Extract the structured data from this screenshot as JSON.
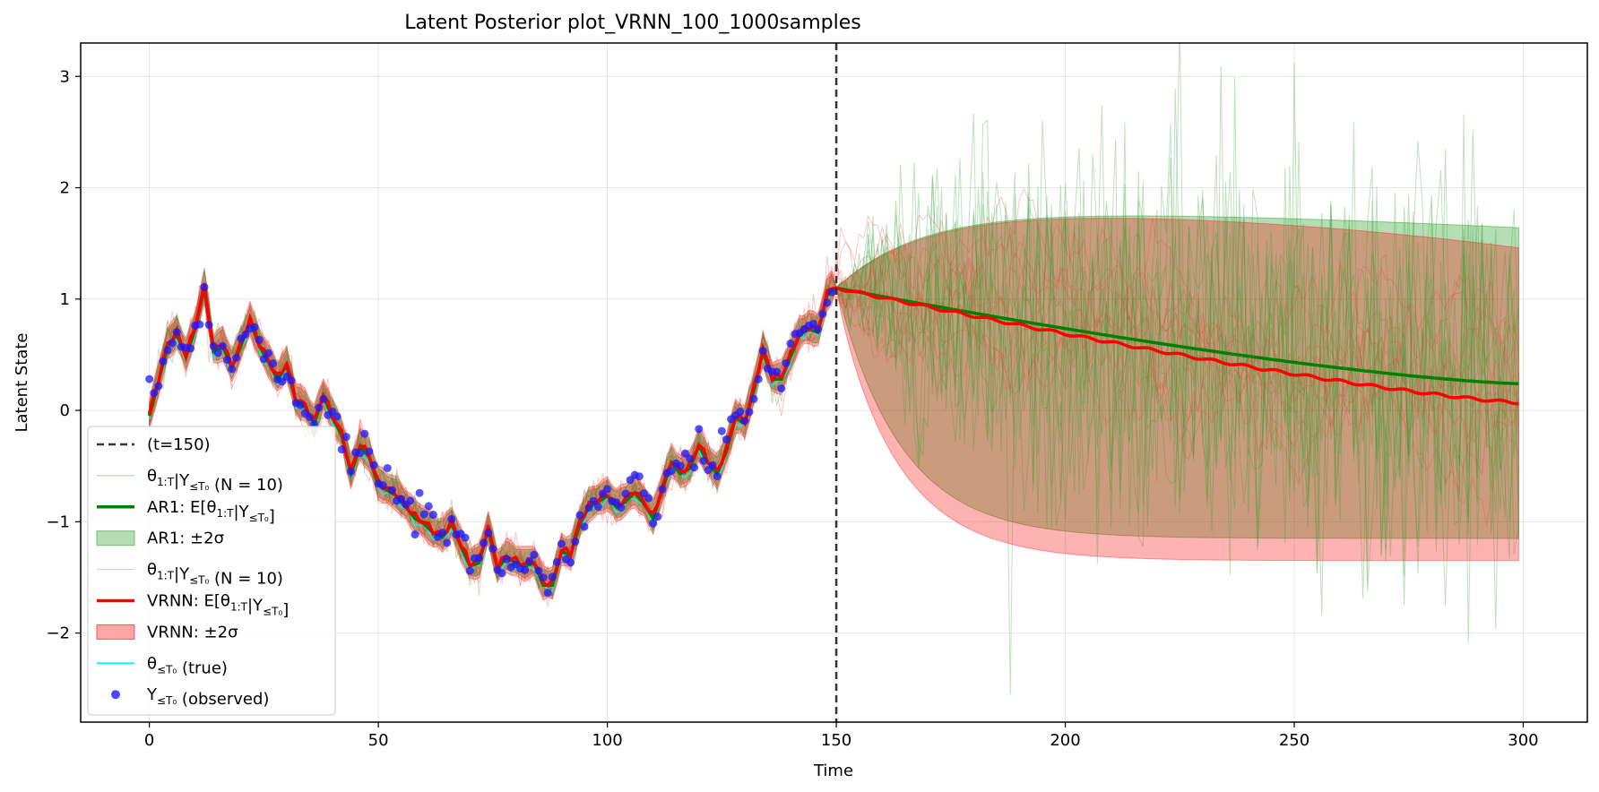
{
  "chart_data": {
    "type": "line",
    "title": "Latent Posterior plot_VRNN_100_1000samples",
    "xlabel": "Time",
    "ylabel": "Latent State",
    "xlim": [
      -15,
      314
    ],
    "ylim": [
      -2.8,
      3.3
    ],
    "xticks": [
      0,
      50,
      100,
      150,
      200,
      250,
      300
    ],
    "yticks": [
      -2,
      -1,
      0,
      1,
      2,
      3
    ],
    "xtick_labels": [
      "0",
      "50",
      "100",
      "150",
      "200",
      "250",
      "300"
    ],
    "ytick_labels": [
      "−2",
      "−1",
      "0",
      "1",
      "2",
      "3"
    ],
    "grid": true,
    "legend_position": "lower left",
    "cutoff": 150,
    "observed_anchors": [
      [
        0,
        -0.03
      ],
      [
        2,
        0.28
      ],
      [
        4,
        0.6
      ],
      [
        6,
        0.7
      ],
      [
        8,
        0.5
      ],
      [
        10,
        0.75
      ],
      [
        12,
        1.12
      ],
      [
        14,
        0.55
      ],
      [
        16,
        0.6
      ],
      [
        18,
        0.4
      ],
      [
        20,
        0.6
      ],
      [
        22,
        0.82
      ],
      [
        24,
        0.6
      ],
      [
        26,
        0.45
      ],
      [
        28,
        0.3
      ],
      [
        30,
        0.42
      ],
      [
        32,
        0.1
      ],
      [
        34,
        0.05
      ],
      [
        36,
        -0.1
      ],
      [
        38,
        0.15
      ],
      [
        40,
        -0.05
      ],
      [
        42,
        -0.2
      ],
      [
        44,
        -0.55
      ],
      [
        46,
        -0.3
      ],
      [
        48,
        -0.4
      ],
      [
        50,
        -0.65
      ],
      [
        52,
        -0.7
      ],
      [
        54,
        -0.75
      ],
      [
        56,
        -0.85
      ],
      [
        58,
        -0.95
      ],
      [
        60,
        -1.0
      ],
      [
        62,
        -1.08
      ],
      [
        64,
        -1.12
      ],
      [
        66,
        -1.0
      ],
      [
        68,
        -1.2
      ],
      [
        70,
        -1.38
      ],
      [
        72,
        -1.35
      ],
      [
        74,
        -1.05
      ],
      [
        76,
        -1.4
      ],
      [
        78,
        -1.3
      ],
      [
        80,
        -1.35
      ],
      [
        82,
        -1.38
      ],
      [
        84,
        -1.35
      ],
      [
        86,
        -1.55
      ],
      [
        88,
        -1.55
      ],
      [
        90,
        -1.25
      ],
      [
        92,
        -1.28
      ],
      [
        94,
        -1.0
      ],
      [
        96,
        -0.85
      ],
      [
        98,
        -0.8
      ],
      [
        100,
        -0.75
      ],
      [
        102,
        -0.85
      ],
      [
        104,
        -0.8
      ],
      [
        106,
        -0.72
      ],
      [
        108,
        -0.82
      ],
      [
        110,
        -0.95
      ],
      [
        112,
        -0.7
      ],
      [
        114,
        -0.45
      ],
      [
        116,
        -0.55
      ],
      [
        118,
        -0.5
      ],
      [
        120,
        -0.3
      ],
      [
        122,
        -0.45
      ],
      [
        124,
        -0.55
      ],
      [
        126,
        -0.35
      ],
      [
        128,
        -0.05
      ],
      [
        130,
        -0.1
      ],
      [
        132,
        0.2
      ],
      [
        134,
        0.55
      ],
      [
        136,
        0.3
      ],
      [
        138,
        0.3
      ],
      [
        140,
        0.5
      ],
      [
        142,
        0.7
      ],
      [
        144,
        0.75
      ],
      [
        146,
        0.72
      ],
      [
        148,
        1.05
      ],
      [
        149,
        1.1
      ]
    ],
    "forecast_mean": {
      "AR1": {
        "start": 1.1,
        "end": 0.24
      },
      "VRNN": {
        "start": 1.1,
        "end": 0.07
      }
    },
    "forecast_band_2sigma": {
      "AR1": {
        "upper_max": 1.79,
        "upper_end": 1.62,
        "lower_end": -1.15
      },
      "VRNN": {
        "upper_max": 1.78,
        "upper_end": 1.48,
        "lower_end": -1.35
      }
    },
    "series": [
      {
        "name": "(t=150)",
        "style": "dashed",
        "color": "#333333"
      },
      {
        "name": "θ_{1:T}|Y_{≤T_0} (N = 10)",
        "color": "#2ca02c",
        "kind": "samples"
      },
      {
        "name": "AR1: E[θ_{1:T}|Y_{≤T_0}]",
        "color": "#008000",
        "kind": "mean"
      },
      {
        "name": "AR1: ±2σ",
        "color": "#2ca02c",
        "kind": "band"
      },
      {
        "name": "θ_{1:T}|Y_{≤T_0} (N = 10)",
        "color": "#ff6666",
        "kind": "samples"
      },
      {
        "name": "VRNN: E[θ_{1:T}|Y_{≤T_0}]",
        "color": "#ff0000",
        "kind": "mean"
      },
      {
        "name": "VRNN: ±2σ",
        "color": "#ff0000",
        "kind": "band"
      },
      {
        "name": "θ_{≤T_0} (true)",
        "color": "#00ffff",
        "kind": "line"
      },
      {
        "name": "Y_{≤T_0} (observed)",
        "color": "#1a1aff",
        "kind": "scatter"
      }
    ]
  },
  "legend": {
    "items": [
      {
        "pre": "(t=150)",
        "sub": "",
        "post": ""
      },
      {
        "pre": "θ",
        "sub": "1:T",
        "post": "|Y",
        "sub2": "≤T₀",
        "post2": " (N = 10)"
      },
      {
        "pre": "AR1: E[θ",
        "sub": "1:T",
        "post": "|Y",
        "sub2": "≤T₀",
        "post2": "]"
      },
      {
        "pre": "AR1: ±2σ",
        "sub": "",
        "post": ""
      },
      {
        "pre": "θ",
        "sub": "1:T",
        "post": "|Y",
        "sub2": "≤T₀",
        "post2": " (N = 10)"
      },
      {
        "pre": "VRNN: E[θ",
        "sub": "1:T",
        "post": "|Y",
        "sub2": "≤T₀",
        "post2": "]"
      },
      {
        "pre": "VRNN: ±2σ",
        "sub": "",
        "post": ""
      },
      {
        "pre": "θ",
        "sub": "≤T₀",
        "post": " (true)"
      },
      {
        "pre": "Y",
        "sub": "≤T₀",
        "post": " (observed)"
      }
    ]
  }
}
